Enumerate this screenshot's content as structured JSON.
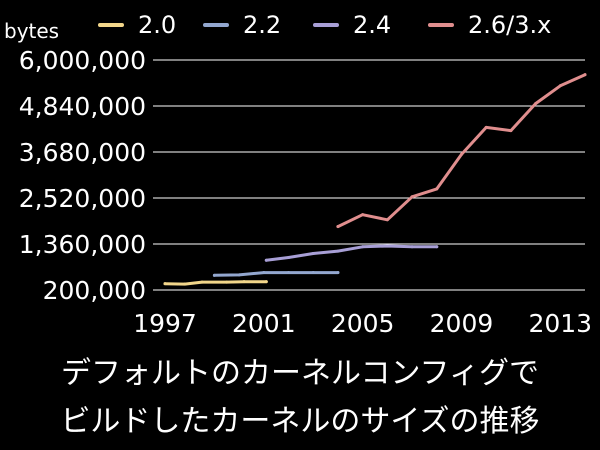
{
  "caption": {
    "line1": "デフォルトのカーネルコンフィグで",
    "line2": "ビルドしたカーネルのサイズの推移"
  },
  "chart_data": {
    "type": "line",
    "ylabel": "bytes",
    "xlim": [
      1997,
      2014
    ],
    "ylim": [
      200000,
      6000000
    ],
    "y_ticks": [
      "200,000",
      "1,360,000",
      "2,520,000",
      "3,680,000",
      "4,840,000",
      "6,000,000"
    ],
    "y_tick_values": [
      200000,
      1360000,
      2520000,
      3680000,
      4840000,
      6000000
    ],
    "x_ticks": [
      "1997",
      "2001",
      "2005",
      "2009",
      "2013"
    ],
    "x_tick_values": [
      1997,
      2001,
      2005,
      2009,
      2013
    ],
    "grid": "horizontal",
    "legend_position": "top",
    "series": [
      {
        "name": "2.0",
        "color": "#f2d68a",
        "points": [
          [
            1997.0,
            360000
          ],
          [
            1997.8,
            350000
          ],
          [
            1998.5,
            400000
          ],
          [
            1999.5,
            400000
          ],
          [
            2000.2,
            410000
          ],
          [
            2001.1,
            410000
          ]
        ]
      },
      {
        "name": "2.2",
        "color": "#93a7cf",
        "points": [
          [
            1999.0,
            570000
          ],
          [
            2000.0,
            580000
          ],
          [
            2001.0,
            640000
          ],
          [
            2002.0,
            640000
          ],
          [
            2003.0,
            640000
          ],
          [
            2004.0,
            640000
          ]
        ]
      },
      {
        "name": "2.4",
        "color": "#a89fd6",
        "points": [
          [
            2001.1,
            950000
          ],
          [
            2002.0,
            1020000
          ],
          [
            2003.0,
            1120000
          ],
          [
            2004.0,
            1180000
          ],
          [
            2005.0,
            1290000
          ],
          [
            2006.0,
            1310000
          ],
          [
            2007.0,
            1290000
          ],
          [
            2008.0,
            1290000
          ]
        ]
      },
      {
        "name": "2.6/3.x",
        "color": "#e08e8e",
        "points": [
          [
            2004.0,
            1800000
          ],
          [
            2005.0,
            2100000
          ],
          [
            2006.0,
            1970000
          ],
          [
            2007.0,
            2550000
          ],
          [
            2008.0,
            2750000
          ],
          [
            2009.0,
            3620000
          ],
          [
            2010.0,
            4300000
          ],
          [
            2011.0,
            4220000
          ],
          [
            2012.0,
            4900000
          ],
          [
            2013.0,
            5350000
          ],
          [
            2014.0,
            5630000
          ]
        ]
      }
    ]
  }
}
